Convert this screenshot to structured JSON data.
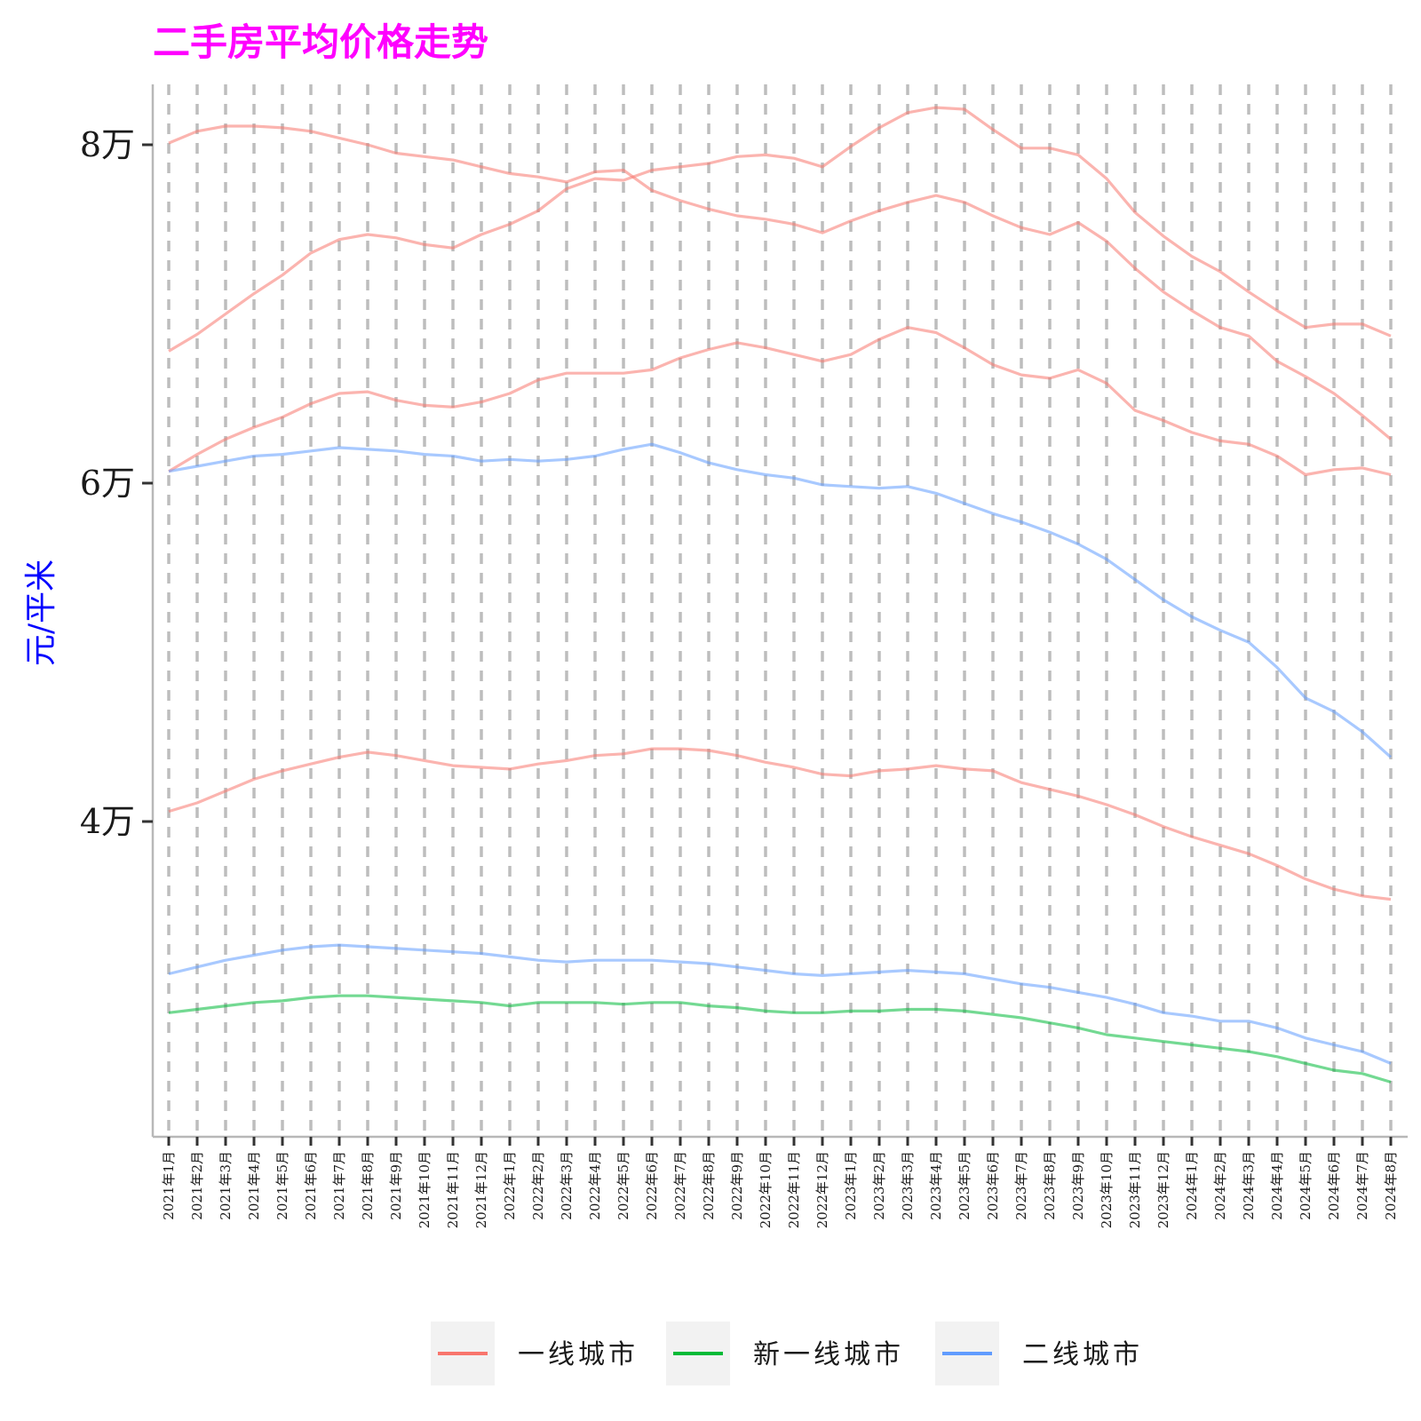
{
  "chart_data": {
    "type": "line",
    "title": "二手房平均价格走势",
    "ylabel": "元/平米",
    "xlabel": "",
    "ylim": [
      21500,
      84000
    ],
    "yticks": [
      {
        "value": 40000,
        "label": "4万"
      },
      {
        "value": 60000,
        "label": "6万"
      },
      {
        "value": 80000,
        "label": "8万"
      }
    ],
    "categories": [
      "2021年1月",
      "2021年2月",
      "2021年3月",
      "2021年4月",
      "2021年5月",
      "2021年6月",
      "2021年7月",
      "2021年8月",
      "2021年9月",
      "2021年10月",
      "2021年11月",
      "2021年12月",
      "2022年1月",
      "2022年2月",
      "2022年3月",
      "2022年4月",
      "2022年5月",
      "2022年6月",
      "2022年7月",
      "2022年8月",
      "2022年9月",
      "2022年10月",
      "2022年11月",
      "2022年12月",
      "2023年1月",
      "2023年2月",
      "2023年3月",
      "2023年4月",
      "2023年5月",
      "2023年6月",
      "2023年7月",
      "2023年8月",
      "2023年9月",
      "2023年10月",
      "2023年11月",
      "2023年12月",
      "2024年1月",
      "2024年2月",
      "2024年3月",
      "2024年4月",
      "2024年5月",
      "2024年6月",
      "2024年7月",
      "2024年8月"
    ],
    "grid": "vertical dashed",
    "legend_position": "bottom",
    "groups": [
      {
        "name": "一线城市",
        "color": "#F8766D"
      },
      {
        "name": "新一线城市",
        "color": "#00BA38"
      },
      {
        "name": "二线城市",
        "color": "#619CFF"
      }
    ],
    "series": [
      {
        "group": "一线城市",
        "values": [
          80100,
          80800,
          81100,
          81100,
          81000,
          80800,
          80400,
          80000,
          79500,
          79300,
          79100,
          78700,
          78300,
          78100,
          77800,
          78400,
          78500,
          77300,
          76700,
          76200,
          75800,
          75600,
          75300,
          74800,
          75500,
          76100,
          76600,
          77000,
          76600,
          75800,
          75100,
          74700,
          75400,
          74300,
          72700,
          71300,
          70200,
          69200,
          68700,
          67200,
          66300,
          65300,
          64000,
          62600
        ]
      },
      {
        "group": "一线城市",
        "values": [
          67800,
          68800,
          70000,
          71200,
          72300,
          73600,
          74400,
          74700,
          74500,
          74100,
          73900,
          74700,
          75300,
          76100,
          77400,
          78000,
          77900,
          78500,
          78700,
          78900,
          79300,
          79400,
          79200,
          78700,
          79900,
          81000,
          81900,
          82200,
          82100,
          80900,
          79800,
          79800,
          79400,
          78000,
          76000,
          74600,
          73400,
          72500,
          71300,
          70200,
          69200,
          69400,
          69400,
          68700
        ]
      },
      {
        "group": "一线城市",
        "values": [
          60700,
          61700,
          62600,
          63300,
          63900,
          64700,
          65300,
          65400,
          64900,
          64600,
          64500,
          64800,
          65300,
          66100,
          66500,
          66500,
          66500,
          66700,
          67400,
          67900,
          68300,
          68000,
          67600,
          67200,
          67600,
          68500,
          69200,
          68900,
          68000,
          67000,
          66400,
          66200,
          66700,
          65900,
          64300,
          63700,
          63000,
          62500,
          62300,
          61600,
          60500,
          60800,
          60900,
          60500
        ]
      },
      {
        "group": "一线城市",
        "values": [
          40600,
          41100,
          41800,
          42500,
          43000,
          43400,
          43800,
          44100,
          43900,
          43600,
          43300,
          43200,
          43100,
          43400,
          43600,
          43900,
          44000,
          44300,
          44300,
          44200,
          43900,
          43500,
          43200,
          42800,
          42700,
          43000,
          43100,
          43300,
          43100,
          43000,
          42300,
          41900,
          41500,
          41000,
          40400,
          39700,
          39100,
          38600,
          38100,
          37400,
          36600,
          36000,
          35600,
          35400
        ]
      },
      {
        "group": "二线城市",
        "values": [
          60700,
          61000,
          61300,
          61600,
          61700,
          61900,
          62100,
          62000,
          61900,
          61700,
          61600,
          61300,
          61400,
          61300,
          61400,
          61600,
          62000,
          62300,
          61800,
          61200,
          60800,
          60500,
          60300,
          59900,
          59800,
          59700,
          59800,
          59400,
          58800,
          58200,
          57700,
          57100,
          56400,
          55500,
          54300,
          53100,
          52100,
          51300,
          50600,
          49100,
          47300,
          46500,
          45300,
          43800
        ]
      },
      {
        "group": "二线城市",
        "values": [
          31000,
          31400,
          31800,
          32100,
          32400,
          32600,
          32700,
          32600,
          32500,
          32400,
          32300,
          32200,
          32000,
          31800,
          31700,
          31800,
          31800,
          31800,
          31700,
          31600,
          31400,
          31200,
          31000,
          30900,
          31000,
          31100,
          31200,
          31100,
          31000,
          30700,
          30400,
          30200,
          29900,
          29600,
          29200,
          28700,
          28500,
          28200,
          28200,
          27800,
          27200,
          26800,
          26400,
          25700
        ]
      },
      {
        "group": "新一线城市",
        "values": [
          28700,
          28900,
          29100,
          29300,
          29400,
          29600,
          29700,
          29700,
          29600,
          29500,
          29400,
          29300,
          29100,
          29300,
          29300,
          29300,
          29200,
          29300,
          29300,
          29100,
          29000,
          28800,
          28700,
          28700,
          28800,
          28800,
          28900,
          28900,
          28800,
          28600,
          28400,
          28100,
          27800,
          27400,
          27200,
          27000,
          26800,
          26600,
          26400,
          26100,
          25700,
          25300,
          25100,
          24600
        ]
      }
    ]
  }
}
